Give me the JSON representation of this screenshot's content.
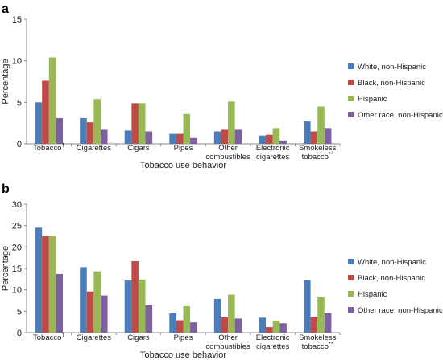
{
  "colors": {
    "white_non_hispanic": "#4a7ebb",
    "black_non_hispanic": "#be4b48",
    "hispanic": "#98b954",
    "other_race_non_hispanic": "#7d60a0"
  },
  "chart_data": [
    {
      "panel_label": "a",
      "type": "bar",
      "xlabel": "Tobacco use behavior",
      "ylabel": "Percentage",
      "ylim": [
        0,
        15
      ],
      "yticks": [
        "0",
        "5",
        "10",
        "15"
      ],
      "categories": [
        {
          "lines": [
            "Tobacco"
          ],
          "sup": "†"
        },
        {
          "lines": [
            "Cigarettes"
          ],
          "sup": ""
        },
        {
          "lines": [
            "Cigars"
          ],
          "sup": ""
        },
        {
          "lines": [
            "Pipes"
          ],
          "sup": ""
        },
        {
          "lines": [
            "Other",
            "combustibles"
          ],
          "sup": ""
        },
        {
          "lines": [
            "Electronic",
            "cigarettes"
          ],
          "sup": ""
        },
        {
          "lines": [
            "Smokeless",
            "tobacco"
          ],
          "sup": "**"
        }
      ],
      "legend_position": "right",
      "series": [
        {
          "name": "White, non-Hispanic",
          "color_key": "white_non_hispanic",
          "values": [
            5.0,
            3.1,
            1.6,
            1.2,
            1.5,
            1.0,
            2.7
          ]
        },
        {
          "name": "Black, non-Hispanic",
          "color_key": "black_non_hispanic",
          "values": [
            7.6,
            2.6,
            4.9,
            1.2,
            1.7,
            1.1,
            1.5
          ]
        },
        {
          "name": "Hispanic",
          "color_key": "hispanic",
          "values": [
            10.4,
            5.4,
            4.9,
            3.6,
            5.1,
            1.9,
            4.5
          ]
        },
        {
          "name": "Other race, non-Hispanic",
          "color_key": "other_race_non_hispanic",
          "values": [
            3.1,
            1.7,
            1.5,
            0.7,
            1.7,
            0.4,
            1.9
          ]
        }
      ]
    },
    {
      "panel_label": "b",
      "type": "bar",
      "xlabel": "Tobacco use behavior",
      "ylabel": "Percentage",
      "ylim": [
        0,
        30
      ],
      "yticks": [
        "0",
        "5",
        "10",
        "15",
        "20",
        "25",
        "30"
      ],
      "categories": [
        {
          "lines": [
            "Tobacco"
          ],
          "sup": "†"
        },
        {
          "lines": [
            "Cigarettes"
          ],
          "sup": ""
        },
        {
          "lines": [
            "Cigars"
          ],
          "sup": ""
        },
        {
          "lines": [
            "Pipes"
          ],
          "sup": ""
        },
        {
          "lines": [
            "Other",
            "combustibles"
          ],
          "sup": ""
        },
        {
          "lines": [
            "Electronic",
            "cigarettes"
          ],
          "sup": ""
        },
        {
          "lines": [
            "Smokeless",
            "tobacco"
          ],
          "sup": "**"
        }
      ],
      "legend_position": "right",
      "series": [
        {
          "name": "White, non-Hispanic",
          "color_key": "white_non_hispanic",
          "values": [
            24.5,
            15.3,
            12.2,
            4.5,
            7.9,
            3.5,
            12.2
          ]
        },
        {
          "name": "Black, non-Hispanic",
          "color_key": "black_non_hispanic",
          "values": [
            22.5,
            9.6,
            16.7,
            2.9,
            3.6,
            1.3,
            3.7
          ]
        },
        {
          "name": "Hispanic",
          "color_key": "hispanic",
          "values": [
            22.5,
            14.3,
            12.4,
            6.2,
            8.9,
            2.7,
            8.3
          ]
        },
        {
          "name": "Other race, non-Hispanic",
          "color_key": "other_race_non_hispanic",
          "values": [
            13.7,
            8.7,
            6.4,
            2.4,
            3.3,
            2.2,
            4.6
          ]
        }
      ]
    }
  ]
}
